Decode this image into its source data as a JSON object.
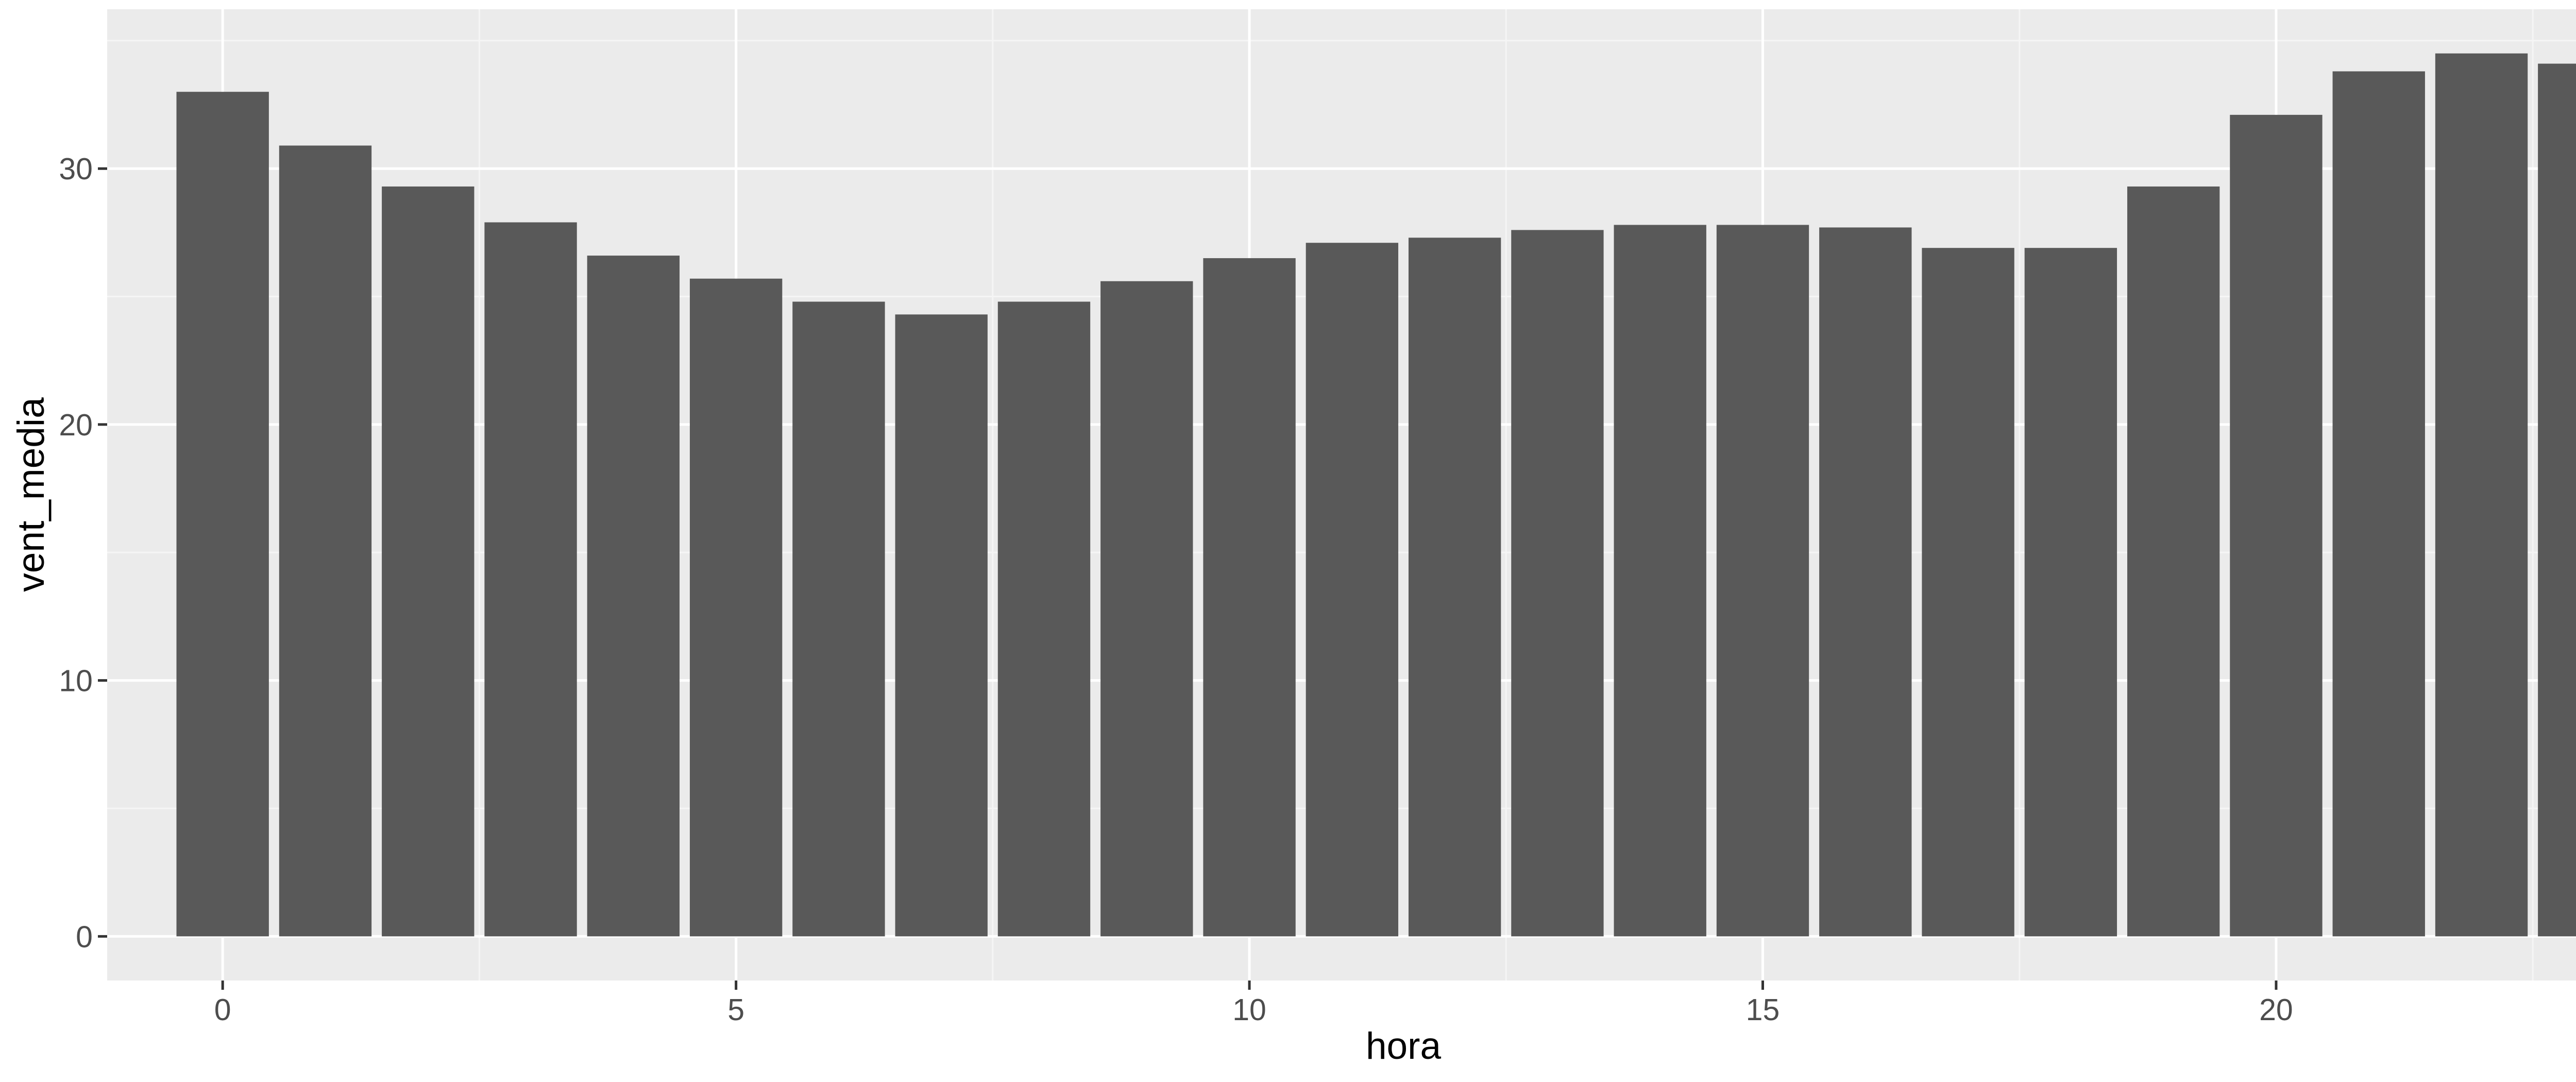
{
  "chart_data": {
    "type": "bar",
    "xlabel": "hora",
    "ylabel": "vent_media",
    "x": [
      0,
      1,
      2,
      3,
      4,
      5,
      6,
      7,
      8,
      9,
      10,
      11,
      12,
      13,
      14,
      15,
      16,
      17,
      18,
      19,
      20,
      21,
      22,
      23
    ],
    "values": [
      33.0,
      30.9,
      29.3,
      27.9,
      26.6,
      25.7,
      24.8,
      24.3,
      24.8,
      25.6,
      26.5,
      27.1,
      27.3,
      27.6,
      27.8,
      27.8,
      27.7,
      26.9,
      26.9,
      29.3,
      32.1,
      33.8,
      34.5,
      34.1
    ],
    "xticks": [
      0,
      5,
      10,
      15,
      20
    ],
    "yticks": [
      0,
      10,
      20,
      30
    ],
    "xlim": [
      -1.125,
      24.125
    ],
    "ylim": [
      -1.725,
      36.225
    ],
    "grid": true,
    "colors": {
      "bar": "#595959",
      "panel": "#EBEBEB",
      "grid_major": "#FFFFFF",
      "grid_minor": "#F5F5F5",
      "tick_text": "#4D4D4D",
      "axis_title": "#000000"
    }
  }
}
